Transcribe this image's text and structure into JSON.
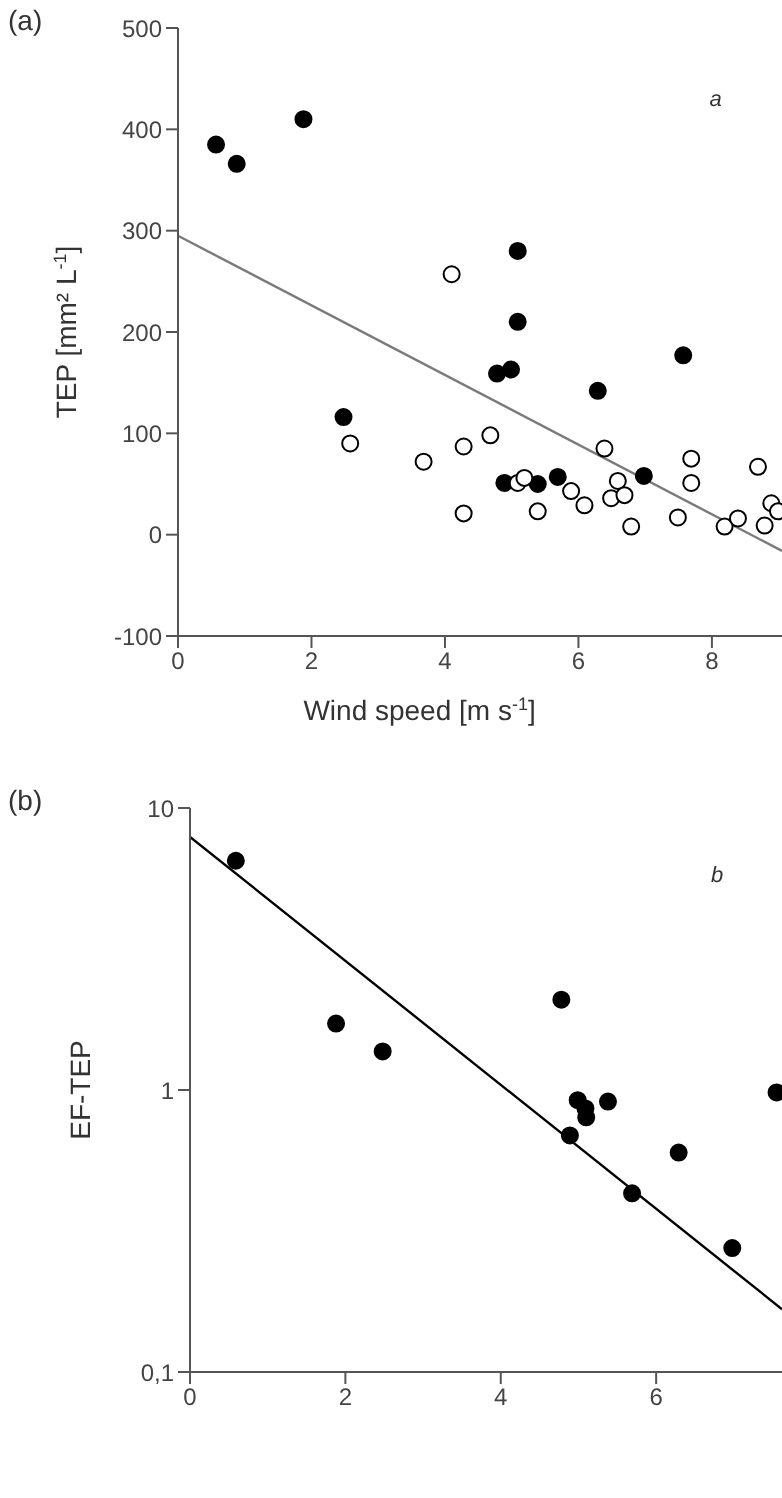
{
  "chart_data": [
    {
      "type": "scatter",
      "xlabel": "Wind speed [m s$^{-1}$]",
      "ylabel": "TEP [mm² L$^{-1}$]",
      "annotations": [
        "(a)",
        "a"
      ],
      "xlim": [
        0,
        9.05
      ],
      "xticks": [
        0,
        2,
        4,
        6,
        8
      ],
      "ylim": [
        -100,
        500
      ],
      "yticks": [
        -100,
        0,
        100,
        200,
        300,
        400,
        500
      ],
      "series": [
        {
          "color": "#000000",
          "marker": "circle",
          "x": [
            0.57,
            0.88,
            1.88,
            2.48,
            4.78,
            4.89,
            4.99,
            5.09,
            5.09,
            5.39,
            5.69,
            6.29,
            6.98,
            7.57
          ],
          "values": [
            385,
            366,
            410,
            116,
            159,
            51,
            163,
            280,
            210,
            50,
            57,
            142,
            58,
            177
          ]
        },
        {
          "color": "#ffffff",
          "marker": "circle",
          "x": [
            2.58,
            3.68,
            4.1,
            4.28,
            4.28,
            4.68,
            5.09,
            5.19,
            5.39,
            5.89,
            6.09,
            6.39,
            6.49,
            6.59,
            6.69,
            6.79,
            7.49,
            7.69,
            7.69,
            8.19,
            8.39,
            8.69,
            8.79,
            8.89,
            8.99
          ],
          "values": [
            90,
            72,
            257,
            87,
            21,
            98,
            51,
            56,
            23,
            43,
            29,
            85,
            36,
            53,
            39,
            8,
            17,
            75,
            51,
            8,
            16,
            67,
            9,
            31,
            23
          ]
        },
        {
          "type": "line",
          "color": "#7a7a7a",
          "line_style": "solid",
          "marker": "none",
          "x": [
            0,
            9.05
          ],
          "values": [
            295,
            -16
          ]
        }
      ]
    },
    {
      "type": "scatter",
      "ylabel": "EF-TEP",
      "annotations": [
        "(b)",
        "b"
      ],
      "xlim": [
        0,
        7.62
      ],
      "xticks": [
        0,
        2,
        4,
        6
      ],
      "ylim": [
        0.1,
        10
      ],
      "yticks": [
        {
          "value": 0.1,
          "label": "0,1"
        },
        1,
        10
      ],
      "log": "y",
      "series": [
        {
          "color": "#000000",
          "marker": "circle",
          "x": [
            0.59,
            1.88,
            2.48,
            4.78,
            4.89,
            4.99,
            5.09,
            5.1,
            5.38,
            5.69,
            6.29,
            6.98,
            7.55
          ],
          "values": [
            6.5,
            1.72,
            1.37,
            2.09,
            0.69,
            0.92,
            0.86,
            0.8,
            0.91,
            0.43,
            0.6,
            0.275,
            0.98
          ]
        },
        {
          "type": "line",
          "color": "#000000",
          "line_style": "solid",
          "marker": "none",
          "x": [
            0,
            7.62
          ],
          "values": [
            7.9,
            0.167
          ]
        }
      ]
    }
  ]
}
